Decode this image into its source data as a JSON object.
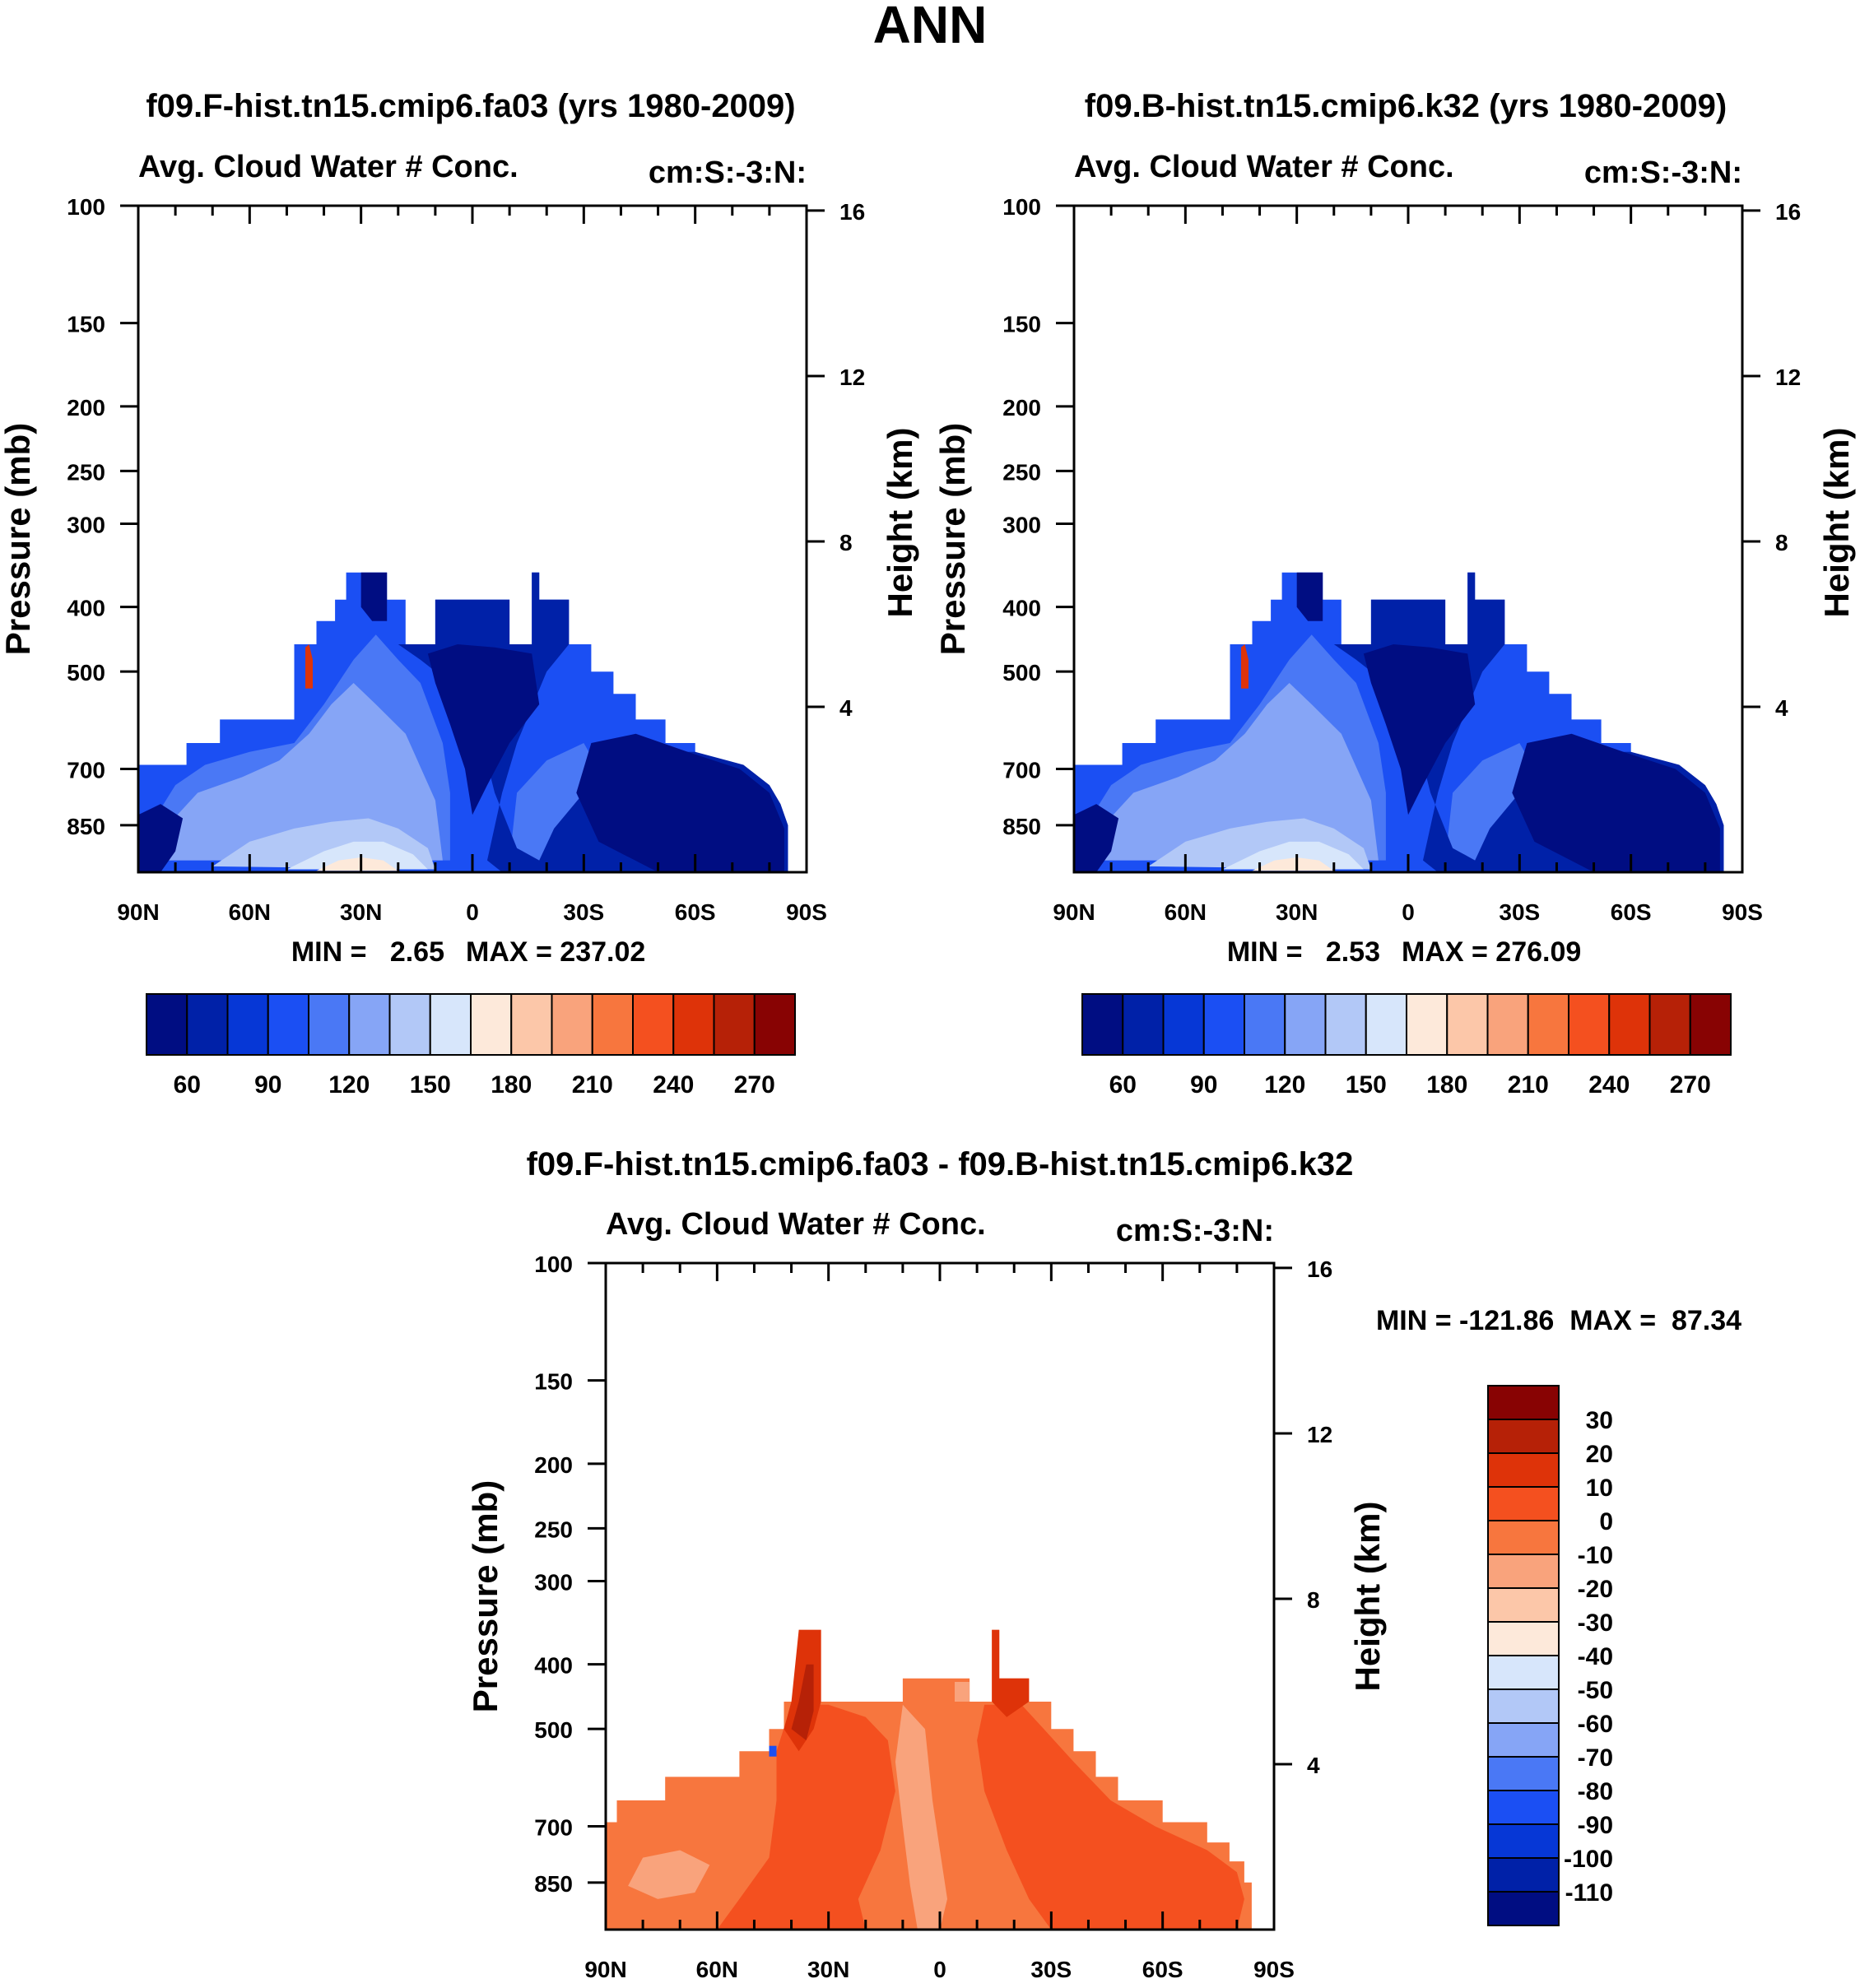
{
  "figure_title": "ANN",
  "chart_data": [
    {
      "type": "heatmap",
      "title": "f09.F-hist.tn15.cmip6.fa03 (yrs 1980-2009)",
      "subtitle_left": "Avg. Cloud Water # Conc.",
      "subtitle_right": "cm:S:-3:N:",
      "ylabel": "Pressure (mb)",
      "ylabel_right": "Height (km)",
      "x_ticks": [
        "90N",
        "60N",
        "30N",
        "0",
        "30S",
        "60S",
        "90S"
      ],
      "y_ticks": [
        "100",
        "150",
        "200",
        "250",
        "300",
        "400",
        "500",
        "700",
        "850"
      ],
      "y_right_ticks": [
        "16",
        "12",
        "8",
        "4"
      ],
      "min_label": "MIN =   2.65",
      "max_label": "MAX = 237.02",
      "colorbar_labels": [
        "60",
        "90",
        "120",
        "150",
        "180",
        "210",
        "240",
        "270"
      ],
      "colors": [
        "#000d82",
        "#0021a8",
        "#0637d6",
        "#1b4ff3",
        "#4a78f5",
        "#86a5f6",
        "#b2c8f7",
        "#d7e6fb",
        "#fde9da",
        "#fcc7a9",
        "#f9a37c",
        "#f7763e",
        "#f4501f",
        "#de3309",
        "#b62107",
        "#880303"
      ],
      "min": 2.65,
      "max": 237.02
    },
    {
      "type": "heatmap",
      "title": "f09.B-hist.tn15.cmip6.k32 (yrs 1980-2009)",
      "subtitle_left": "Avg. Cloud Water # Conc.",
      "subtitle_right": "cm:S:-3:N:",
      "ylabel": "Pressure (mb)",
      "ylabel_right": "Height (km)",
      "x_ticks": [
        "90N",
        "60N",
        "30N",
        "0",
        "30S",
        "60S",
        "90S"
      ],
      "y_ticks": [
        "100",
        "150",
        "200",
        "250",
        "300",
        "400",
        "500",
        "700",
        "850"
      ],
      "y_right_ticks": [
        "16",
        "12",
        "8",
        "4"
      ],
      "min_label": "MIN =   2.53",
      "max_label": "MAX = 276.09",
      "colorbar_labels": [
        "60",
        "90",
        "120",
        "150",
        "180",
        "210",
        "240",
        "270"
      ],
      "colors": [
        "#000d82",
        "#0021a8",
        "#0637d6",
        "#1b4ff3",
        "#4a78f5",
        "#86a5f6",
        "#b2c8f7",
        "#d7e6fb",
        "#fde9da",
        "#fcc7a9",
        "#f9a37c",
        "#f7763e",
        "#f4501f",
        "#de3309",
        "#b62107",
        "#880303"
      ],
      "min": 2.53,
      "max": 276.09
    },
    {
      "type": "heatmap",
      "title": "f09.F-hist.tn15.cmip6.fa03 - f09.B-hist.tn15.cmip6.k32",
      "subtitle_left": "Avg. Cloud Water # Conc.",
      "subtitle_right": "cm:S:-3:N:",
      "ylabel": "Pressure (mb)",
      "ylabel_right": "Height (km)",
      "x_ticks": [
        "90N",
        "60N",
        "30N",
        "0",
        "30S",
        "60S",
        "90S"
      ],
      "y_ticks": [
        "100",
        "150",
        "200",
        "250",
        "300",
        "400",
        "500",
        "700",
        "850"
      ],
      "y_right_ticks": [
        "16",
        "12",
        "8",
        "4"
      ],
      "minmax_label": "MIN = -121.86  MAX =  87.34",
      "colorbar_labels": [
        "30",
        "20",
        "10",
        "0",
        "-10",
        "-20",
        "-30",
        "-40",
        "-50",
        "-60",
        "-70",
        "-80",
        "-90",
        "-100",
        "-110"
      ],
      "colors": [
        "#880303",
        "#b62107",
        "#de3309",
        "#f4501f",
        "#f7763e",
        "#f9a37c",
        "#fcc7a9",
        "#fde9da",
        "#d7e6fb",
        "#b2c8f7",
        "#86a5f6",
        "#4a78f5",
        "#1b4ff3",
        "#0637d6",
        "#0021a8",
        "#000d82"
      ],
      "min": -121.86,
      "max": 87.34
    }
  ]
}
